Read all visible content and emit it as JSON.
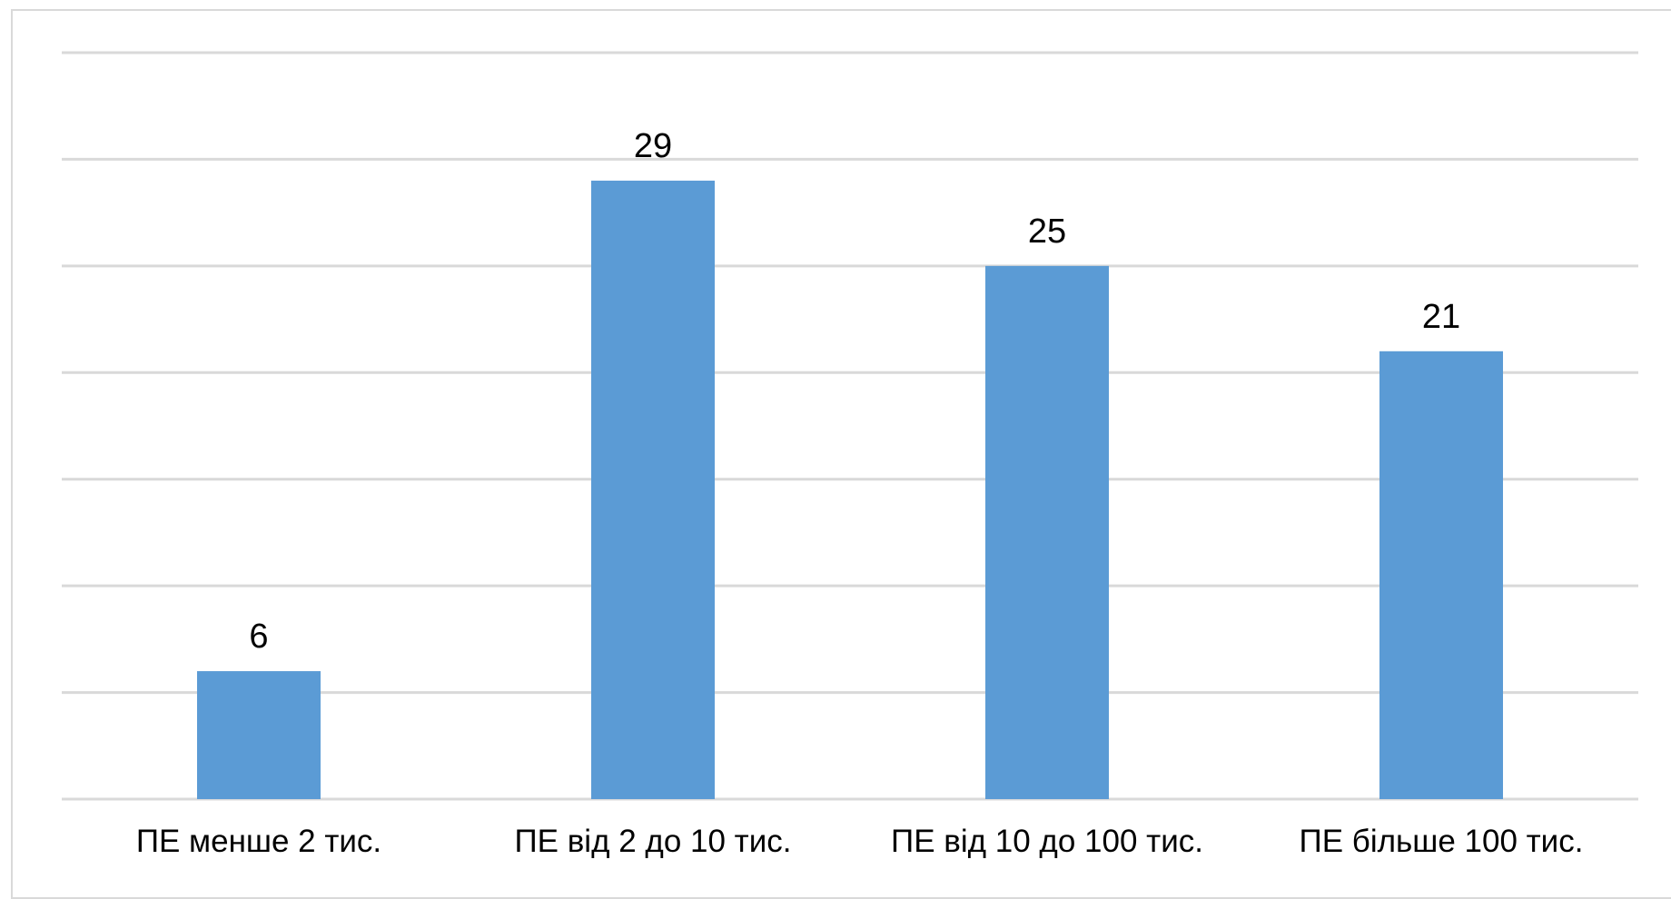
{
  "chart_data": {
    "type": "bar",
    "categories": [
      "ПЕ менше 2 тис.",
      "ПЕ від 2 до 10 тис.",
      "ПЕ від 10 до 100 тис.",
      "ПЕ більше 100 тис."
    ],
    "values": [
      6,
      29,
      25,
      21
    ],
    "title": "",
    "xlabel": "",
    "ylabel": "",
    "ylim": [
      0,
      35
    ],
    "grid": true,
    "legend": "none",
    "colors": {
      "bar": "#5b9bd5",
      "grid": "#d9d9d9",
      "text": "#000000"
    }
  }
}
